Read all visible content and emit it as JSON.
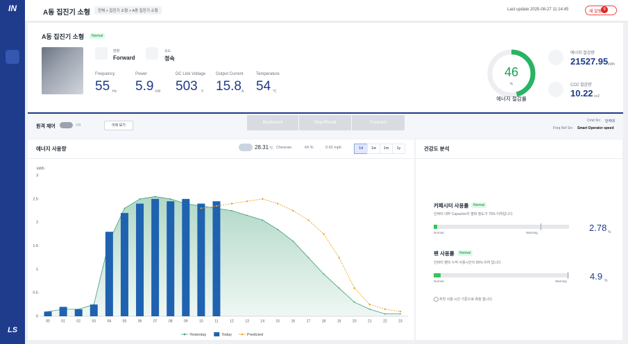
{
  "sidebar": {
    "logo": "IN",
    "footer": "LS"
  },
  "header": {
    "title": "A동 집진기 소형",
    "breadcrumb": "전체 > 집진기 소형 > A동 집진기 소형",
    "last_update": "Last update 2025-08-27 11:14:45",
    "alarm": "새 알람",
    "alarm_count": "9"
  },
  "device": {
    "title": "A동 집진기 소형",
    "status": "Normal",
    "direction_label": "방향",
    "direction": "Forward",
    "speed_label": "속도",
    "speed": "정속",
    "metrics": [
      {
        "label": "Frequency",
        "value": "55",
        "unit": "Hz"
      },
      {
        "label": "Power",
        "value": "5.9",
        "unit": "kW"
      },
      {
        "label": "DC Link Voltage",
        "value": "503",
        "unit": "V"
      },
      {
        "label": "Output Current",
        "value": "15.8",
        "unit": "A"
      },
      {
        "label": "Temperature",
        "value": "54",
        "unit": "°C"
      }
    ]
  },
  "gauge": {
    "value": 46,
    "unit": "%",
    "label": "에너지 절감률"
  },
  "savings": [
    {
      "label": "에너지 절감량",
      "value": "21527.95",
      "unit": "kWh"
    },
    {
      "label": "CO2 절감량",
      "value": "10.22",
      "unit": "co2"
    }
  ],
  "control": {
    "title": "원격 제어",
    "toggle": "Off",
    "history": "이력 보기",
    "buttons": [
      "Backward",
      "Stop/Reset",
      "Forward"
    ],
    "cmd_src_label": "Cmd Src",
    "cmd_src": "단자대",
    "freq_src_label": "Freq Ref Src",
    "freq_src": "Smart Operator speed"
  },
  "energy": {
    "title": "에너지 사용량",
    "temperature": "28.31",
    "temp_unit": "°C",
    "city": "Cheonan",
    "humidity": "64 %",
    "wind": "0.62 mph",
    "ranges": [
      "1d",
      "1w",
      "1m",
      "1y"
    ]
  },
  "health": {
    "title": "건강도 분석",
    "items": [
      {
        "name": "커패시터 사용률",
        "status": "Normal",
        "desc": "인버터 내부 Capacitor의 열화 정도가 70% 이하입니다.",
        "low": "Normal",
        "high": "Warning",
        "value": 2.78,
        "unit": "%"
      },
      {
        "name": "팬 사용률",
        "status": "Normal",
        "desc": "인버터 팬의 누적 사용시간이 90% 이하 입니다.",
        "low": "Normal",
        "high": "Warning",
        "value": 4.9,
        "unit": "%"
      }
    ],
    "note": "추천 사용 시간 기준으로 측정 합니다."
  },
  "chart_data": {
    "type": "combo",
    "y_label": "kWh",
    "categories": [
      "00",
      "01",
      "02",
      "03",
      "04",
      "05",
      "06",
      "07",
      "08",
      "09",
      "10",
      "11",
      "12",
      "13",
      "14",
      "15",
      "16",
      "17",
      "18",
      "19",
      "20",
      "21",
      "22",
      "23"
    ],
    "series": [
      {
        "name": "Yesterday",
        "kind": "area",
        "color": "#3a9d72",
        "values": [
          0.1,
          0.15,
          0.15,
          0.25,
          1.6,
          2.3,
          2.5,
          2.55,
          2.5,
          2.4,
          2.35,
          2.3,
          2.25,
          2.15,
          2.05,
          1.85,
          1.6,
          1.25,
          0.9,
          0.6,
          0.3,
          0.15,
          0.05,
          0.05
        ]
      },
      {
        "name": "Today",
        "kind": "bar",
        "color": "#1f62b0",
        "values": [
          0.1,
          0.2,
          0.15,
          0.25,
          1.8,
          2.2,
          2.4,
          2.5,
          2.45,
          2.5,
          2.4,
          2.45,
          null,
          null,
          null,
          null,
          null,
          null,
          null,
          null,
          null,
          null,
          null,
          null
        ]
      },
      {
        "name": "Predicted",
        "kind": "line",
        "color": "#f0a020",
        "values": [
          null,
          null,
          null,
          null,
          null,
          null,
          null,
          null,
          null,
          null,
          2.3,
          2.35,
          2.4,
          2.45,
          2.5,
          2.4,
          2.25,
          2.05,
          1.75,
          1.25,
          0.6,
          0.25,
          0.15,
          0.1
        ]
      }
    ],
    "ylim": [
      0,
      3
    ],
    "yticks": [
      0,
      0.5,
      1,
      1.5,
      2,
      2.5,
      3
    ],
    "grid": false
  }
}
